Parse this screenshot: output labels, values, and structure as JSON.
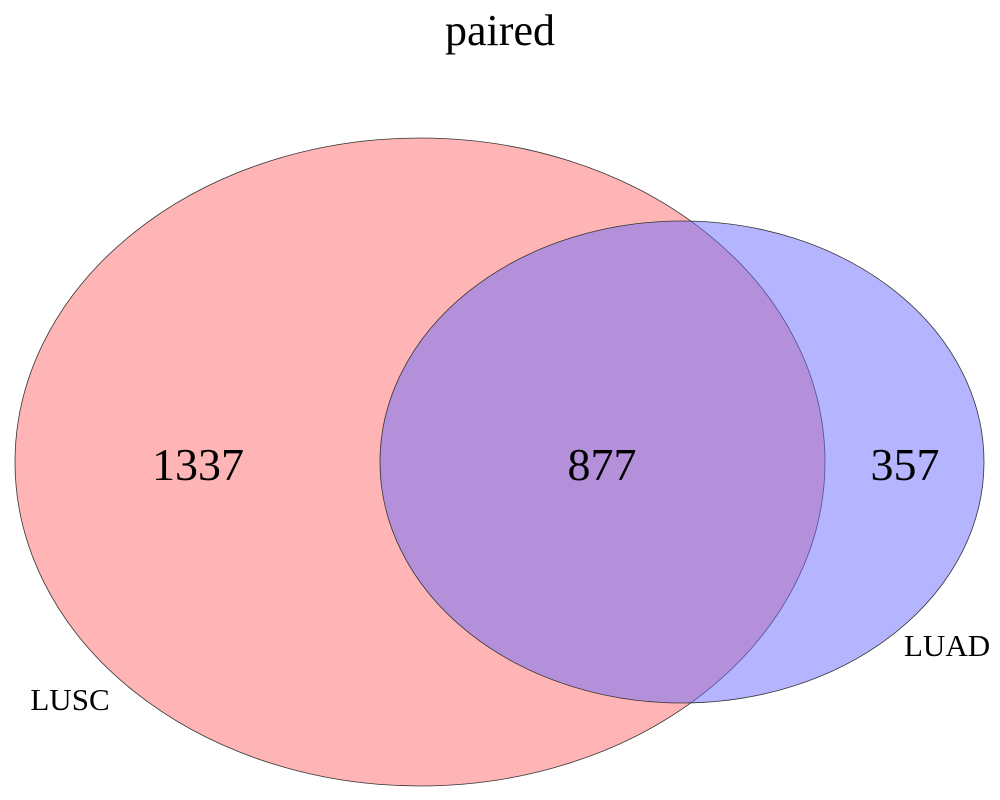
{
  "title": "paired",
  "colors": {
    "set_a_fill": "#ff6b6b",
    "set_b_fill": "#6b6bff",
    "outline": "#333333"
  },
  "chart_data": {
    "type": "venn",
    "title": "paired",
    "sets": [
      {
        "name": "LUSC",
        "only": 1337
      },
      {
        "name": "LUAD",
        "only": 357
      }
    ],
    "intersection": 877
  },
  "labels": {
    "set_a": "LUSC",
    "set_b": "LUAD",
    "count_a_only": "1337",
    "count_intersection": "877",
    "count_b_only": "357"
  }
}
